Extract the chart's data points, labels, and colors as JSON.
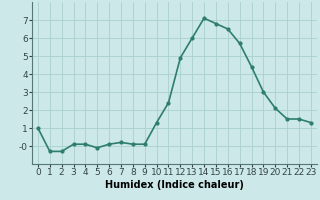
{
  "x": [
    0,
    1,
    2,
    3,
    4,
    5,
    6,
    7,
    8,
    9,
    10,
    11,
    12,
    13,
    14,
    15,
    16,
    17,
    18,
    19,
    20,
    21,
    22,
    23
  ],
  "y": [
    1.0,
    -0.3,
    -0.3,
    0.1,
    0.1,
    -0.1,
    0.1,
    0.2,
    0.1,
    0.1,
    1.3,
    2.4,
    4.9,
    6.0,
    7.1,
    6.8,
    6.5,
    5.7,
    4.4,
    3.0,
    2.1,
    1.5,
    1.5,
    1.3
  ],
  "line_color": "#2e7d6e",
  "marker": "o",
  "marker_size": 2.0,
  "line_width": 1.2,
  "bg_color": "#cce8e8",
  "grid_color": "#aacfcf",
  "xlabel": "Humidex (Indice chaleur)",
  "ylim": [
    -1,
    8
  ],
  "xlim": [
    -0.5,
    23.5
  ],
  "yticks": [
    0,
    1,
    2,
    3,
    4,
    5,
    6,
    7
  ],
  "ytick_labels": [
    "-0",
    "1",
    "2",
    "3",
    "4",
    "5",
    "6",
    "7"
  ],
  "xticks": [
    0,
    1,
    2,
    3,
    4,
    5,
    6,
    7,
    8,
    9,
    10,
    11,
    12,
    13,
    14,
    15,
    16,
    17,
    18,
    19,
    20,
    21,
    22,
    23
  ],
  "xlabel_fontsize": 7,
  "tick_fontsize": 6.5
}
